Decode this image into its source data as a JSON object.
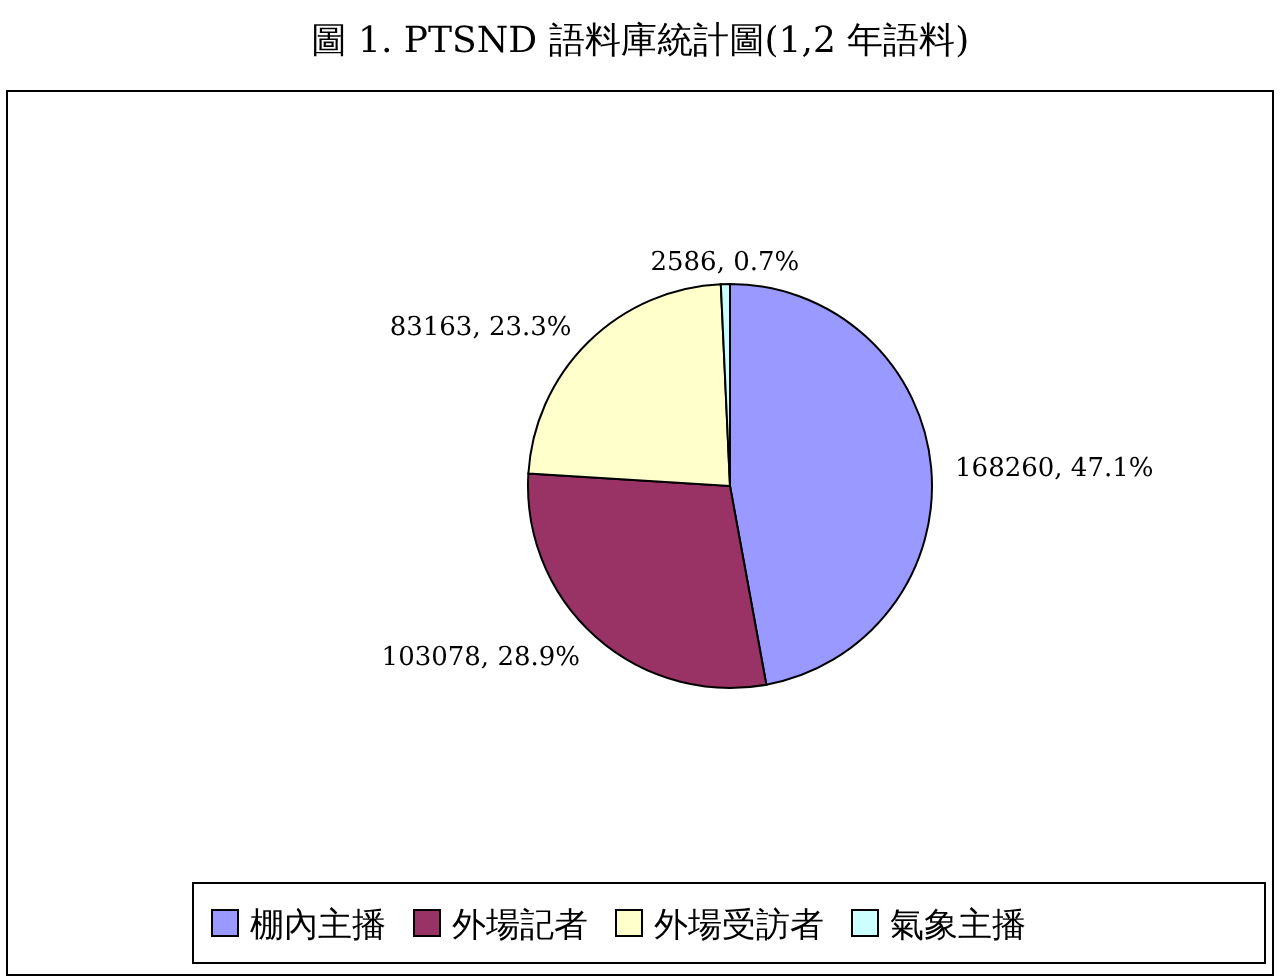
{
  "chart_data": {
    "type": "pie",
    "title": "圖 1. PTSND 語料庫統計圖(1,2 年語料)",
    "categories": [
      "棚內主播",
      "外場記者",
      "外場受訪者",
      "氣象主播"
    ],
    "values": [
      168260,
      103078,
      83163,
      2586
    ],
    "colors": [
      "#9999ff",
      "#993366",
      "#ffffcc",
      "#ccffff"
    ],
    "value_labels": [
      "168260, 47.1%",
      "103078, 28.9%",
      "83163, 23.3%",
      "2586, 0.7%"
    ],
    "legend": "bottom"
  }
}
